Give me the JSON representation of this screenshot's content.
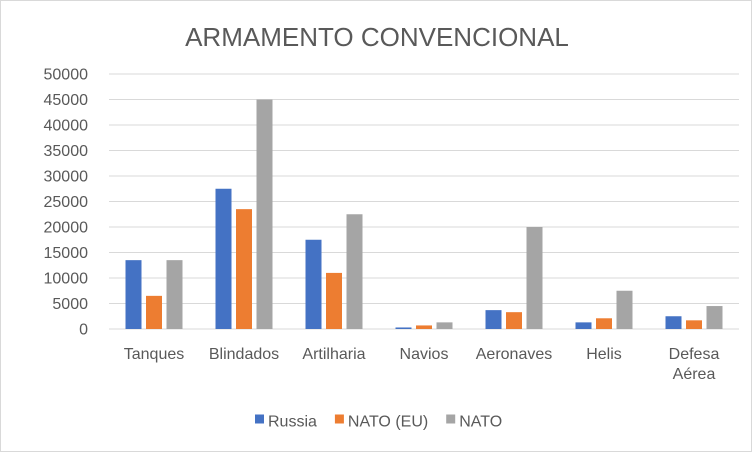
{
  "chart_data": {
    "type": "bar",
    "title": "ARMAMENTO CONVENCIONAL",
    "xlabel": "",
    "ylabel": "",
    "ylim": [
      0,
      50000
    ],
    "yticks": [
      0,
      5000,
      10000,
      15000,
      20000,
      25000,
      30000,
      35000,
      40000,
      45000,
      50000
    ],
    "grid": true,
    "legend_position": "bottom",
    "categories": [
      [
        "Tanques"
      ],
      [
        "Blindados"
      ],
      [
        "Artilharia"
      ],
      [
        "Navios"
      ],
      [
        "Aeronaves"
      ],
      [
        "Helis"
      ],
      [
        "Defesa",
        "Aérea"
      ]
    ],
    "series": [
      {
        "name": "Russia",
        "color": "#4472c4",
        "values": [
          13500,
          27500,
          17500,
          300,
          3700,
          1300,
          2500
        ]
      },
      {
        "name": "NATO (EU)",
        "color": "#ed7d31",
        "values": [
          6500,
          23500,
          11000,
          700,
          3300,
          2100,
          1700
        ]
      },
      {
        "name": "NATO",
        "color": "#a5a5a5",
        "values": [
          13500,
          45000,
          22500,
          1300,
          20000,
          7500,
          4500
        ]
      }
    ]
  }
}
